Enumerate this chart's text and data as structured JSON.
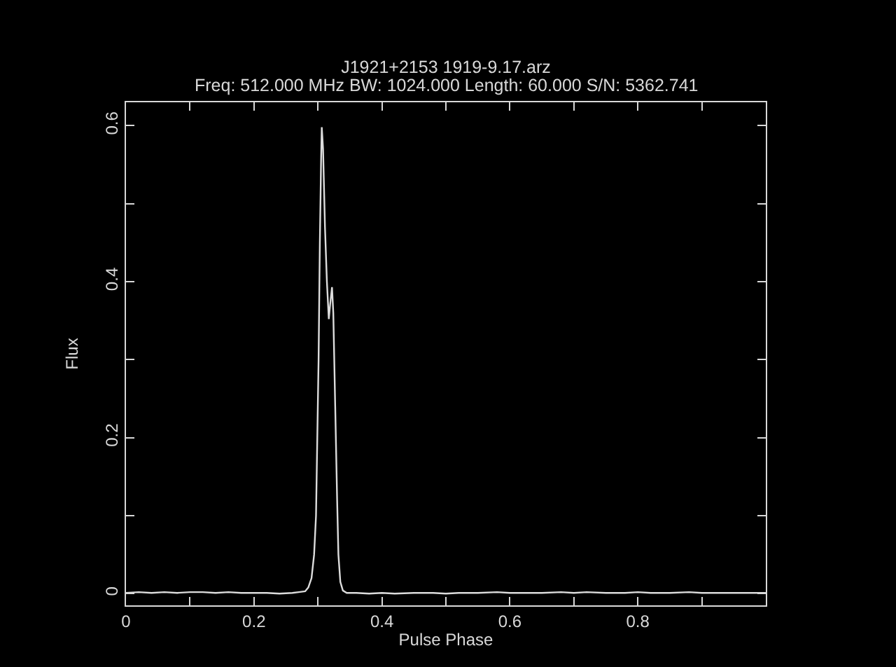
{
  "chart_data": {
    "type": "line",
    "title": "J1921+2153 1919-9.17.arz",
    "subtitle": "Freq: 512.000 MHz BW: 1024.000 Length: 60.000 S/N: 5362.741",
    "xlabel": "Pulse Phase",
    "ylabel": "Flux",
    "x": [
      0,
      0.02,
      0.04,
      0.06,
      0.08,
      0.1,
      0.12,
      0.14,
      0.16,
      0.18,
      0.2,
      0.22,
      0.24,
      0.26,
      0.27,
      0.28,
      0.285,
      0.29,
      0.294,
      0.297,
      0.299,
      0.301,
      0.303,
      0.305,
      0.306,
      0.308,
      0.311,
      0.314,
      0.317,
      0.319,
      0.322,
      0.324,
      0.327,
      0.33,
      0.332,
      0.335,
      0.339,
      0.345,
      0.36,
      0.38,
      0.4,
      0.42,
      0.45,
      0.48,
      0.5,
      0.52,
      0.55,
      0.58,
      0.6,
      0.62,
      0.65,
      0.68,
      0.7,
      0.72,
      0.75,
      0.78,
      0.8,
      0.82,
      0.85,
      0.88,
      0.9,
      0.92,
      0.95,
      0.98,
      1
    ],
    "series": [
      {
        "color": "#dcdcdc",
        "values": [
          0.001,
          0.002,
          0.001,
          0.002,
          0.001,
          0.002,
          0.002,
          0.001,
          0.002,
          0.001,
          0.001,
          0.001,
          0,
          0.001,
          0.002,
          0.003,
          0.008,
          0.02,
          0.05,
          0.1,
          0.2,
          0.3,
          0.45,
          0.56,
          0.598,
          0.57,
          0.47,
          0.4,
          0.352,
          0.37,
          0.393,
          0.36,
          0.24,
          0.12,
          0.05,
          0.015,
          0.004,
          0.001,
          0.001,
          0,
          0.001,
          0,
          0.001,
          0.001,
          0,
          0.001,
          0.001,
          0.002,
          0.001,
          0.001,
          0.001,
          0.002,
          0.001,
          0.002,
          0.001,
          0.001,
          0.002,
          0.001,
          0.001,
          0.002,
          0.001,
          0.001,
          0.001,
          0.001,
          0.001
        ]
      }
    ],
    "xlim": [
      0,
      1
    ],
    "ylim": [
      -0.015,
      0.63
    ],
    "xticks": [
      0,
      {
        "value": 0.1,
        "label": null
      },
      0.2,
      {
        "value": 0.3,
        "label": null
      },
      0.4,
      {
        "value": 0.5,
        "label": null
      },
      0.6,
      {
        "value": 0.7,
        "label": null
      },
      0.8,
      {
        "value": 0.9,
        "label": null
      }
    ],
    "yticks": [
      0,
      {
        "value": 0.1,
        "label": null
      },
      0.2,
      {
        "value": 0.3,
        "label": null
      },
      0.4,
      {
        "value": 0.5,
        "label": null
      },
      0.6
    ]
  }
}
